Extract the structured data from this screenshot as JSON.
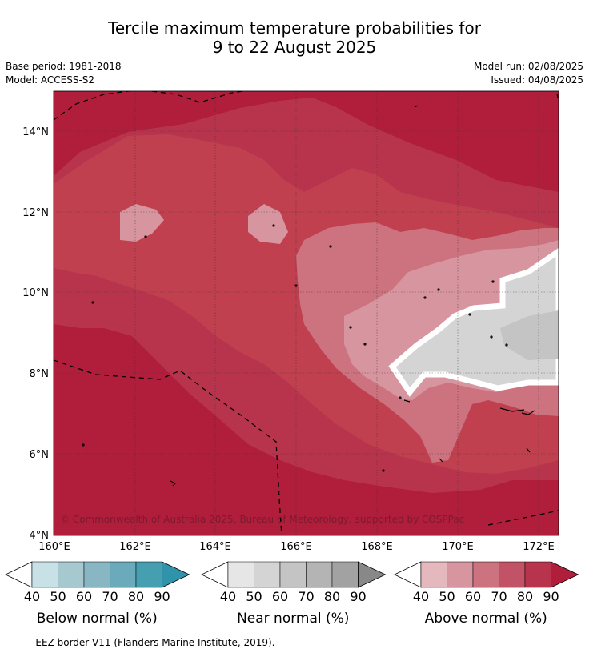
{
  "title": {
    "line1": "Tercile maximum temperature probabilities for",
    "line2": "9 to 22 August 2025"
  },
  "meta": {
    "base_period": "Base period: 1981-2018",
    "model": "Model: ACCESS-S2",
    "model_run": "Model run: 02/08/2025",
    "issued": "Issued: 04/08/2025"
  },
  "map": {
    "lat_ticks": [
      "14°N",
      "12°N",
      "10°N",
      "8°N",
      "6°N",
      "4°N"
    ],
    "lon_ticks": [
      "160°E",
      "162°E",
      "164°E",
      "166°E",
      "168°E",
      "170°E",
      "172°E"
    ],
    "credit": "© Commonwealth of Australia 2025, Bureau of Meteorology, supported by COSPPac",
    "dominant_category": "Above normal",
    "near_normal_region": "east of 169°E between about 7.5°N and 11°N"
  },
  "colorbars": [
    {
      "label": "Below normal (%)",
      "ticks": [
        "40",
        "50",
        "60",
        "70",
        "80",
        "90"
      ],
      "colors": [
        "#ffffff",
        "#c7e1e7",
        "#a6c8cf",
        "#88b7c3",
        "#6aaabb",
        "#459fb0",
        "#2f94aa"
      ]
    },
    {
      "label": "Near normal (%)",
      "ticks": [
        "40",
        "50",
        "60",
        "70",
        "80",
        "90"
      ],
      "colors": [
        "#ffffff",
        "#e6e6e6",
        "#d4d4d4",
        "#c4c4c4",
        "#b4b4b4",
        "#a2a2a2",
        "#888888"
      ]
    },
    {
      "label": "Above normal (%)",
      "ticks": [
        "40",
        "50",
        "60",
        "70",
        "80",
        "90"
      ],
      "colors": [
        "#ffffff",
        "#e4b8bd",
        "#d7959f",
        "#cd727f",
        "#c25266",
        "#b8344d",
        "#b01e3c"
      ]
    }
  ],
  "footer": "--  --  -- EEZ border V11 (Flanders Marine Institute, 2019)."
}
